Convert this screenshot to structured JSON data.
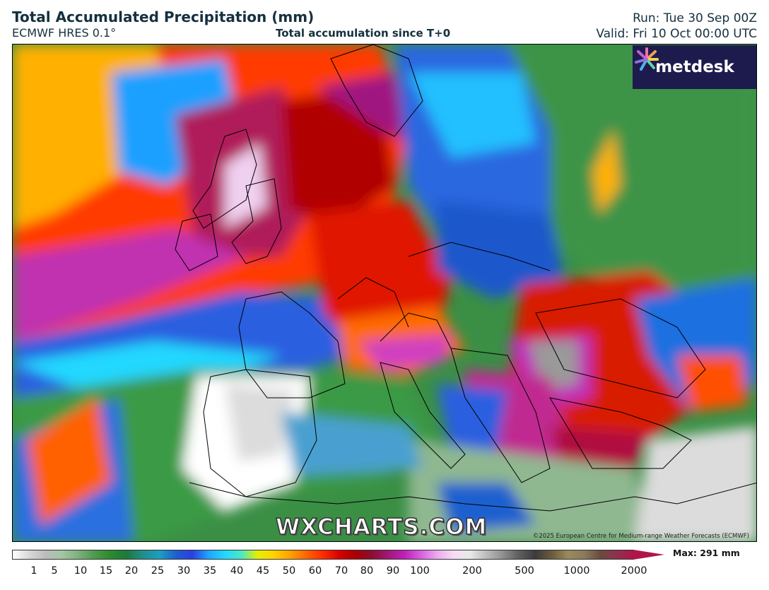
{
  "header": {
    "title": "Total Accumulated Precipitation (mm)",
    "model": "ECMWF HRES 0.1°",
    "subtitle": "Total accumulation since T+0",
    "run": "Run: Tue 30 Sep 00Z",
    "valid": "Valid: Fri 10 Oct 00:00 UTC"
  },
  "map": {
    "region": "Europe",
    "logo_text": "metdesk",
    "watermark": "WXCHARTS.COM",
    "copyright": "©2025 European Centre for Medium-range Weather Forecasts (ECMWF)"
  },
  "legend": {
    "max_label": "Max: 291 mm",
    "ticks": [
      "1",
      "5",
      "10",
      "15",
      "20",
      "25",
      "30",
      "35",
      "40",
      "45",
      "50",
      "60",
      "70",
      "80",
      "90",
      "100",
      "200",
      "500",
      "1000",
      "2000"
    ],
    "colors": [
      "#ffffff",
      "#d9d9d9",
      "#bcbcbc",
      "#a4c6a4",
      "#7fb07f",
      "#4e9a4e",
      "#2c8a2c",
      "#1c7a3c",
      "#1f8f8f",
      "#1a9fbf",
      "#1e5fd0",
      "#2a3fe0",
      "#1fa5ff",
      "#22d8ff",
      "#49e8c6",
      "#e6f000",
      "#ffd100",
      "#ffa000",
      "#ff6400",
      "#ff2b00",
      "#d80000",
      "#a80000",
      "#8a1030",
      "#a0187a",
      "#c020b8",
      "#d860e0",
      "#ecaaf0",
      "#f6dcf6",
      "#e8e8e8",
      "#bcbcbc",
      "#909090",
      "#5e5e5e",
      "#3b3b3b",
      "#6b5a3c",
      "#9a8a5a",
      "#8c7a5a",
      "#6a4a40",
      "#903050",
      "#b01548"
    ]
  }
}
